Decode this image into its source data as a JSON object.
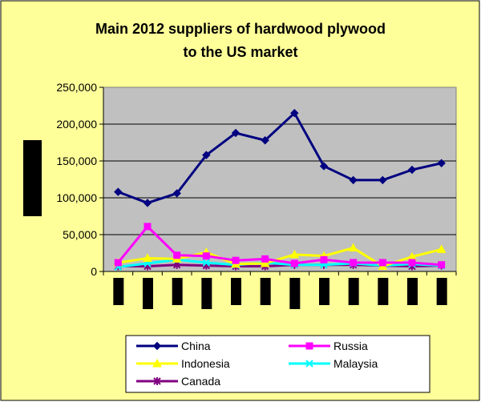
{
  "chart_data": {
    "type": "line",
    "title_line1": "Main 2012 suppliers of hardwood plywood",
    "title_line2": "to the US market",
    "ylim": [
      0,
      250000
    ],
    "y_ticks": [
      0,
      50000,
      100000,
      150000,
      200000,
      250000
    ],
    "y_tick_labels": [
      "0",
      "50,000",
      "100,000",
      "150,000",
      "200,000",
      "250,000"
    ],
    "grid": true,
    "legend_position": "bottom",
    "colors": {
      "background": "#FFFF99",
      "plot_area": "#C0C0C0",
      "redacted_label": "#000000"
    },
    "x_count": 12,
    "series": [
      {
        "name": "China",
        "color": "#000080",
        "marker": "diamond",
        "values": [
          108000,
          93000,
          106000,
          158000,
          188000,
          178000,
          215000,
          143000,
          124000,
          124000,
          138000,
          147000
        ]
      },
      {
        "name": "Russia",
        "color": "#FF00FF",
        "marker": "square",
        "values": [
          12000,
          61000,
          22000,
          21000,
          15000,
          17000,
          11000,
          16000,
          12000,
          12000,
          12000,
          9000
        ]
      },
      {
        "name": "Indonesia",
        "color": "#FFFF00",
        "marker": "triangle",
        "values": [
          12000,
          18000,
          17000,
          26000,
          10000,
          11000,
          23000,
          21000,
          32000,
          7000,
          20000,
          30000
        ]
      },
      {
        "name": "Malaysia",
        "color": "#00FFFF",
        "marker": "x",
        "values": [
          6000,
          11000,
          16000,
          12000,
          9000,
          12000,
          9000,
          9000,
          11000,
          8000,
          10000,
          8000
        ]
      },
      {
        "name": "Canada",
        "color": "#800080",
        "marker": "star",
        "values": [
          7000,
          7000,
          9000,
          8000,
          7000,
          7000,
          9000,
          9000,
          9000,
          8000,
          7000,
          8000
        ]
      }
    ]
  }
}
